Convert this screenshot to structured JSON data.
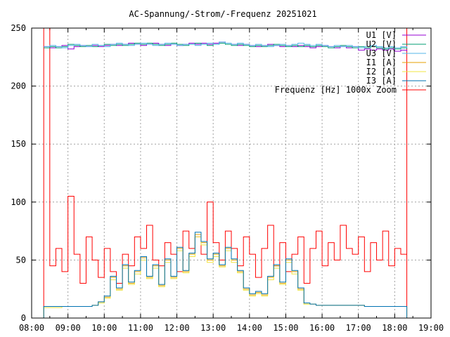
{
  "chart_data": {
    "type": "line",
    "title": "AC-Spannung/-Strom/-Frequenz 20251021",
    "xlabel": "",
    "ylabel": "",
    "xlim": [
      "08:00",
      "19:00"
    ],
    "ylim": [
      0,
      250
    ],
    "x_ticks": [
      "08:00",
      "09:00",
      "10:00",
      "11:00",
      "12:00",
      "13:00",
      "14:00",
      "15:00",
      "16:00",
      "17:00",
      "18:00",
      "19:00"
    ],
    "y_ticks": [
      0,
      50,
      100,
      150,
      200,
      250
    ],
    "grid": true,
    "legend_position": "top-right",
    "x": [
      "08:20",
      "08:30",
      "08:40",
      "08:50",
      "09:00",
      "09:10",
      "09:20",
      "09:30",
      "09:40",
      "09:50",
      "10:00",
      "10:10",
      "10:20",
      "10:30",
      "10:40",
      "10:50",
      "11:00",
      "11:10",
      "11:20",
      "11:30",
      "11:40",
      "11:50",
      "12:00",
      "12:10",
      "12:20",
      "12:30",
      "12:40",
      "12:50",
      "13:00",
      "13:10",
      "13:20",
      "13:30",
      "13:40",
      "13:50",
      "14:00",
      "14:10",
      "14:20",
      "14:30",
      "14:40",
      "14:50",
      "15:00",
      "15:10",
      "15:20",
      "15:30",
      "15:40",
      "15:50",
      "16:00",
      "16:10",
      "16:20",
      "16:30",
      "16:40",
      "16:50",
      "17:00",
      "17:10",
      "17:20",
      "17:30",
      "17:40",
      "17:50",
      "18:00",
      "18:10",
      "18:20"
    ],
    "series": [
      {
        "name": "U1 [V]",
        "color": "#9400d3",
        "values": [
          234,
          233,
          234,
          235,
          232,
          234,
          235,
          234,
          235,
          234,
          235,
          236,
          235,
          236,
          237,
          236,
          235,
          236,
          237,
          236,
          235,
          236,
          235,
          236,
          237,
          236,
          237,
          236,
          237,
          238,
          237,
          236,
          235,
          236,
          235,
          234,
          235,
          236,
          235,
          234,
          235,
          234,
          235,
          234,
          233,
          234,
          235,
          234,
          233,
          234,
          233,
          234,
          231,
          232,
          231,
          232,
          231,
          232,
          230,
          231,
          230
        ]
      },
      {
        "name": "U2 [V]",
        "color": "#009e73",
        "values": [
          233,
          234,
          233,
          234,
          236,
          235,
          234,
          235,
          234,
          235,
          236,
          235,
          236,
          235,
          236,
          237,
          236,
          237,
          236,
          235,
          236,
          237,
          236,
          235,
          236,
          237,
          236,
          235,
          236,
          237,
          236,
          235,
          236,
          235,
          234,
          235,
          234,
          235,
          236,
          235,
          234,
          235,
          234,
          235,
          234,
          235,
          234,
          233,
          234,
          235,
          234,
          233,
          234,
          233,
          234,
          233,
          232,
          233,
          232,
          233,
          232
        ]
      },
      {
        "name": "U3 [V]",
        "color": "#56b4e9",
        "values": [
          234,
          235,
          234,
          233,
          235,
          236,
          235,
          234,
          236,
          235,
          234,
          236,
          237,
          236,
          235,
          236,
          237,
          236,
          235,
          236,
          237,
          236,
          235,
          236,
          236,
          235,
          236,
          237,
          236,
          238,
          237,
          236,
          237,
          236,
          235,
          236,
          235,
          234,
          235,
          236,
          235,
          236,
          237,
          236,
          235,
          236,
          235,
          234,
          235,
          234,
          235,
          234,
          233,
          234,
          235,
          234,
          233,
          234,
          233,
          234,
          233
        ]
      },
      {
        "name": "I1 [A]",
        "color": "#e69f00",
        "values": [
          10,
          10,
          10,
          10,
          10,
          10,
          10,
          10,
          11,
          14,
          18,
          35,
          25,
          45,
          30,
          40,
          52,
          35,
          45,
          28,
          50,
          35,
          60,
          40,
          55,
          72,
          65,
          50,
          55,
          45,
          60,
          50,
          40,
          25,
          20,
          22,
          20,
          35,
          45,
          30,
          50,
          40,
          25,
          12,
          12,
          11,
          11,
          11,
          11,
          11,
          11,
          11,
          11,
          10,
          10,
          10,
          10,
          10,
          10,
          10,
          10
        ]
      },
      {
        "name": "I2 [A]",
        "color": "#f0e442",
        "values": [
          9,
          9,
          9,
          10,
          10,
          10,
          10,
          10,
          11,
          13,
          17,
          33,
          24,
          43,
          29,
          38,
          50,
          34,
          43,
          27,
          48,
          34,
          58,
          39,
          53,
          70,
          63,
          48,
          53,
          44,
          58,
          48,
          39,
          24,
          19,
          21,
          19,
          33,
          43,
          29,
          48,
          38,
          24,
          12,
          12,
          11,
          11,
          11,
          11,
          11,
          11,
          11,
          11,
          10,
          10,
          10,
          10,
          10,
          10,
          10,
          10
        ]
      },
      {
        "name": "I3 [A]",
        "color": "#0072b2",
        "values": [
          10,
          10,
          10,
          10,
          10,
          10,
          10,
          10,
          11,
          14,
          19,
          36,
          26,
          46,
          31,
          41,
          53,
          36,
          46,
          29,
          51,
          36,
          61,
          41,
          56,
          74,
          66,
          51,
          56,
          46,
          61,
          51,
          41,
          26,
          21,
          23,
          21,
          36,
          46,
          31,
          51,
          41,
          26,
          13,
          12,
          11,
          11,
          11,
          11,
          11,
          11,
          11,
          11,
          10,
          10,
          10,
          10,
          10,
          10,
          10,
          10
        ]
      },
      {
        "name": "Frequenz [Hz] 1000x Zoom",
        "color": "#ff0000",
        "values": [
          250,
          45,
          60,
          40,
          105,
          55,
          30,
          70,
          50,
          35,
          60,
          40,
          30,
          55,
          45,
          70,
          60,
          80,
          50,
          45,
          65,
          55,
          40,
          75,
          60,
          70,
          55,
          100,
          65,
          50,
          75,
          60,
          45,
          70,
          55,
          35,
          60,
          80,
          45,
          65,
          40,
          55,
          70,
          30,
          60,
          75,
          45,
          65,
          50,
          80,
          60,
          55,
          70,
          40,
          65,
          50,
          75,
          45,
          60,
          55,
          250
        ]
      }
    ]
  }
}
